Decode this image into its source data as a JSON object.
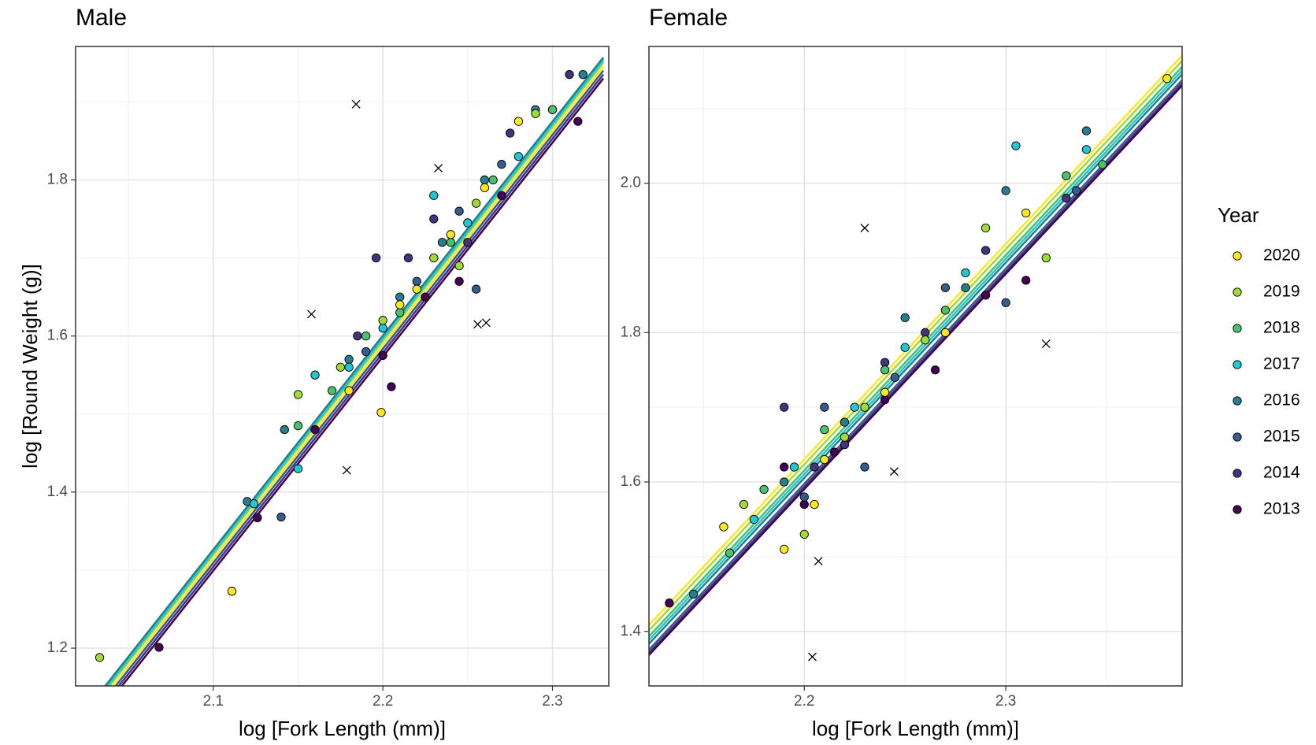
{
  "chart_data": [
    {
      "type": "scatter",
      "title": "Male",
      "x_label": "log [Fork Length (mm)]",
      "y_label": "log [Round Weight (g)]",
      "xlim": [
        2.0188,
        2.3332
      ],
      "ylim": [
        1.1516,
        1.971
      ],
      "xticks": [
        2.1,
        2.2,
        2.3
      ],
      "yticks": [
        1.2,
        1.4,
        1.6,
        1.8
      ],
      "grid": true,
      "series": [
        {
          "color": "#FDE725",
          "x": [
            2.111,
            2.199,
            2.18,
            2.21,
            2.24,
            2.26,
            2.28,
            2.22
          ],
          "y": [
            1.273,
            1.502,
            1.53,
            1.64,
            1.73,
            1.79,
            1.875,
            1.66
          ],
          "fit": {
            "x": [
              2.02,
              2.33
            ],
            "y": [
              1.095,
              1.945
            ]
          }
        },
        {
          "color": "#A0DA39",
          "x": [
            2.033,
            2.15,
            2.175,
            2.2,
            2.23,
            2.255,
            2.29,
            2.245
          ],
          "y": [
            1.188,
            1.525,
            1.56,
            1.62,
            1.7,
            1.77,
            1.885,
            1.69
          ],
          "fit": {
            "x": [
              2.02,
              2.33
            ],
            "y": [
              1.1,
              1.95
            ]
          }
        },
        {
          "color": "#4AC16D",
          "x": [
            2.15,
            2.17,
            2.19,
            2.21,
            2.24,
            2.265,
            2.3
          ],
          "y": [
            1.485,
            1.53,
            1.6,
            1.63,
            1.72,
            1.8,
            1.89
          ],
          "fit": {
            "x": [
              2.02,
              2.33
            ],
            "y": [
              1.105,
              1.955
            ]
          }
        },
        {
          "color": "#22C7D6",
          "x": [
            2.124,
            2.15,
            2.16,
            2.18,
            2.2,
            2.23,
            2.25,
            2.28
          ],
          "y": [
            1.385,
            1.43,
            1.55,
            1.56,
            1.61,
            1.78,
            1.745,
            1.83
          ],
          "fit": {
            "x": [
              2.02,
              2.33
            ],
            "y": [
              1.103,
              1.953
            ]
          }
        },
        {
          "color": "#277F8E",
          "x": [
            2.12,
            2.142,
            2.18,
            2.21,
            2.235,
            2.26,
            2.29,
            2.318
          ],
          "y": [
            1.388,
            1.48,
            1.57,
            1.65,
            1.72,
            1.8,
            1.89,
            1.935
          ],
          "fit": {
            "x": [
              2.02,
              2.33
            ],
            "y": [
              1.107,
              1.957
            ]
          }
        },
        {
          "color": "#365C8D",
          "x": [
            2.14,
            2.19,
            2.22,
            2.245,
            2.27,
            2.3,
            2.255
          ],
          "y": [
            1.368,
            1.58,
            1.67,
            1.76,
            1.82,
            1.89,
            1.66
          ],
          "fit": {
            "x": [
              2.02,
              2.33
            ],
            "y": [
              1.09,
              1.94
            ]
          }
        },
        {
          "color": "#46337E",
          "x": [
            2.185,
            2.215,
            2.23,
            2.25,
            2.275,
            2.31,
            2.196
          ],
          "y": [
            1.6,
            1.7,
            1.75,
            1.72,
            1.86,
            1.935,
            1.7
          ],
          "fit": {
            "x": [
              2.02,
              2.33
            ],
            "y": [
              1.085,
              1.935
            ]
          }
        },
        {
          "color": "#440154",
          "x": [
            2.068,
            2.126,
            2.16,
            2.2,
            2.225,
            2.245,
            2.27,
            2.315,
            2.205
          ],
          "y": [
            1.201,
            1.367,
            1.48,
            1.575,
            1.65,
            1.67,
            1.78,
            1.875,
            1.535
          ],
          "fit": {
            "x": [
              2.02,
              2.33
            ],
            "y": [
              1.08,
              1.93
            ]
          }
        }
      ],
      "outliers": {
        "x": [
          2.1842,
          2.2327,
          2.1579,
          2.1787,
          2.2559,
          2.2609
        ],
        "y": [
          1.897,
          1.815,
          1.628,
          1.428,
          1.615,
          1.617
        ]
      }
    },
    {
      "type": "scatter",
      "title": "Female",
      "x_label": "log [Fork Length (mm)]",
      "legend_title": "Year",
      "legend": "right",
      "xlim": [
        2.1229,
        2.3875
      ],
      "ylim": [
        1.327,
        2.183
      ],
      "xticks": [
        2.2,
        2.3
      ],
      "yticks": [
        1.4,
        1.6,
        1.8,
        {
          "value": 2,
          "label": "2.0"
        }
      ],
      "grid": true,
      "series": [
        {
          "name": "2020",
          "color": "#FDE725",
          "x": [
            2.38,
            2.19,
            2.16,
            2.21,
            2.24,
            2.27,
            2.31,
            2.205
          ],
          "y": [
            2.14,
            1.51,
            1.54,
            1.63,
            1.72,
            1.8,
            1.96,
            1.57
          ],
          "fit": {
            "x": [
              2.12,
              2.39
            ],
            "y": [
              1.4,
              2.178
            ]
          }
        },
        {
          "name": "2019",
          "color": "#A0DA39",
          "x": [
            2.17,
            2.2,
            2.22,
            2.26,
            2.29,
            2.32,
            2.23
          ],
          "y": [
            1.57,
            1.53,
            1.66,
            1.79,
            1.94,
            1.9,
            1.7
          ],
          "fit": {
            "x": [
              2.12,
              2.39
            ],
            "y": [
              1.393,
              2.171
            ]
          }
        },
        {
          "name": "2018",
          "color": "#4AC16D",
          "x": [
            2.163,
            2.18,
            2.21,
            2.24,
            2.27,
            2.33,
            2.348
          ],
          "y": [
            1.505,
            1.59,
            1.67,
            1.75,
            1.83,
            2.01,
            2.025
          ],
          "fit": {
            "x": [
              2.12,
              2.39
            ],
            "y": [
              1.385,
              2.163
            ]
          }
        },
        {
          "name": "2017",
          "color": "#22C7D6",
          "x": [
            2.175,
            2.195,
            2.225,
            2.25,
            2.28,
            2.34,
            2.305
          ],
          "y": [
            1.55,
            1.62,
            1.7,
            1.78,
            1.88,
            2.045,
            2.05
          ],
          "fit": {
            "x": [
              2.12,
              2.39
            ],
            "y": [
              1.38,
              2.158
            ]
          }
        },
        {
          "name": "2016",
          "color": "#277F8E",
          "x": [
            2.145,
            2.19,
            2.22,
            2.25,
            2.28,
            2.3,
            2.34
          ],
          "y": [
            1.45,
            1.6,
            1.68,
            1.82,
            1.86,
            1.99,
            2.07
          ],
          "fit": {
            "x": [
              2.12,
              2.39
            ],
            "y": [
              1.375,
              2.153
            ]
          }
        },
        {
          "name": "2015",
          "color": "#365C8D",
          "x": [
            2.2,
            2.21,
            2.245,
            2.27,
            2.3,
            2.335,
            2.23
          ],
          "y": [
            1.58,
            1.7,
            1.74,
            1.86,
            1.84,
            1.99,
            1.62
          ],
          "fit": {
            "x": [
              2.12,
              2.39
            ],
            "y": [
              1.367,
              2.145
            ]
          }
        },
        {
          "name": "2014",
          "color": "#46337E",
          "x": [
            2.19,
            2.22,
            2.24,
            2.26,
            2.29,
            2.33,
            2.205
          ],
          "y": [
            1.7,
            1.65,
            1.76,
            1.8,
            1.91,
            1.98,
            1.62
          ],
          "fit": {
            "x": [
              2.12,
              2.39
            ],
            "y": [
              1.363,
              2.141
            ]
          }
        },
        {
          "name": "2013",
          "color": "#440154",
          "x": [
            2.133,
            2.19,
            2.215,
            2.24,
            2.265,
            2.29,
            2.31,
            2.2
          ],
          "y": [
            1.438,
            1.62,
            1.64,
            1.71,
            1.75,
            1.85,
            1.87,
            1.57
          ],
          "fit": {
            "x": [
              2.12,
              2.39
            ],
            "y": [
              1.36,
              2.138
            ]
          }
        }
      ],
      "outliers": {
        "x": [
          2.23,
          2.32,
          2.2446,
          2.207,
          2.204
        ],
        "y": [
          1.94,
          1.785,
          1.614,
          1.494,
          1.366
        ]
      }
    }
  ]
}
